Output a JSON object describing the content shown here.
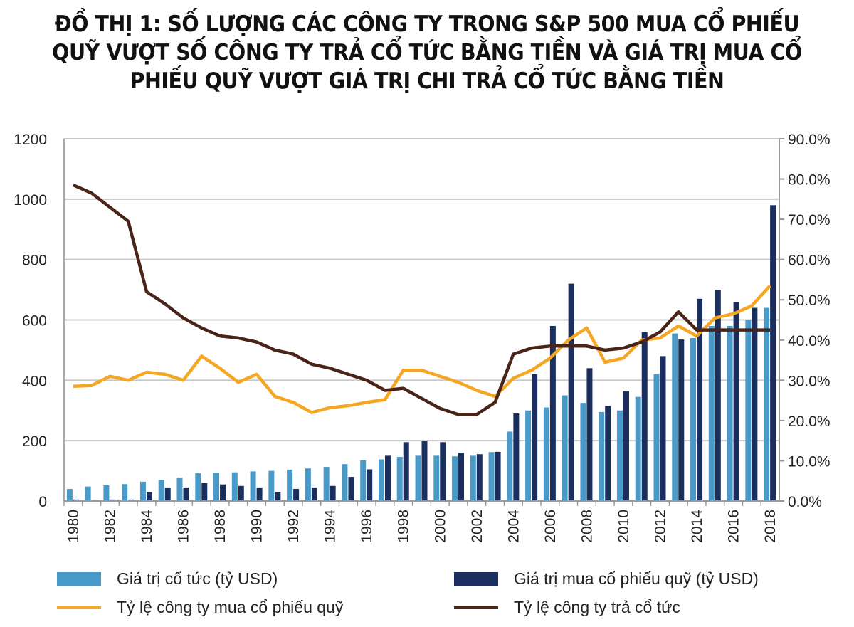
{
  "chart_data": {
    "type": "bar+line",
    "title": "ĐỒ THỊ 1: SỐ LƯỢNG CÁC CÔNG TY TRONG S&P 500 MUA CỔ PHIẾU QUỸ VƯỢT SỐ CÔNG TY TRẢ CỔ TỨC BẰNG TIỀN VÀ GIÁ TRỊ MUA CỔ PHIẾU QUỸ VƯỢT GIÁ TRỊ CHI TRẢ CỔ TỨC BẰNG TIỀN",
    "title_lines": [
      "ĐỒ THỊ 1: SỐ LƯỢNG CÁC CÔNG TY TRONG S&P 500 MUA CỔ PHIẾU",
      "QUỸ VƯỢT SỐ CÔNG TY TRẢ CỔ TỨC BẰNG TIỀN VÀ GIÁ TRỊ MUA CỔ",
      "PHIẾU QUỸ VƯỢT GIÁ TRỊ CHI TRẢ CỔ TỨC BẰNG TIỀN"
    ],
    "categories": [
      1980,
      1981,
      1982,
      1983,
      1984,
      1985,
      1986,
      1987,
      1988,
      1989,
      1990,
      1991,
      1992,
      1993,
      1994,
      1995,
      1996,
      1997,
      1998,
      1999,
      2000,
      2001,
      2002,
      2003,
      2004,
      2005,
      2006,
      2007,
      2008,
      2009,
      2010,
      2011,
      2012,
      2013,
      2014,
      2015,
      2016,
      2017,
      2018
    ],
    "x_tick_labels": [
      "1980",
      "1982",
      "1984",
      "1986",
      "1988",
      "1990",
      "1992",
      "1994",
      "1996",
      "1998",
      "2000",
      "2002",
      "2004",
      "2006",
      "2008",
      "2010",
      "2012",
      "2014",
      "2016",
      "2018"
    ],
    "ylim_left": [
      0,
      1200
    ],
    "y_ticks_left": [
      "0",
      "200",
      "400",
      "600",
      "800",
      "1000",
      "1200"
    ],
    "ylim_right": [
      0,
      90
    ],
    "y_ticks_right": [
      "0.0%",
      "10.0%",
      "20.0%",
      "30.0%",
      "40.0%",
      "50.0%",
      "60.0%",
      "70.0%",
      "80.0%",
      "90.0%"
    ],
    "grid": true,
    "legend_position": "bottom",
    "series": [
      {
        "name": "Giá trị cổ tức (tỷ USD)",
        "type": "bar",
        "axis": "left",
        "color": "#4a9ac9",
        "values": [
          40,
          48,
          52,
          56,
          64,
          70,
          78,
          92,
          94,
          95,
          98,
          100,
          104,
          108,
          113,
          122,
          135,
          138,
          146,
          150,
          150,
          148,
          150,
          162,
          230,
          300,
          310,
          350,
          325,
          295,
          300,
          345,
          420,
          555,
          540,
          580,
          580,
          600,
          640
        ]
      },
      {
        "name": "Giá trị mua cổ phiếu quỹ (tỷ USD)",
        "type": "bar",
        "axis": "left",
        "color": "#1b2f5e",
        "values": [
          5,
          3,
          5,
          5,
          30,
          45,
          45,
          60,
          55,
          50,
          45,
          30,
          40,
          45,
          50,
          80,
          105,
          150,
          195,
          200,
          195,
          160,
          155,
          163,
          290,
          420,
          580,
          720,
          440,
          315,
          365,
          560,
          480,
          535,
          670,
          700,
          660,
          640,
          980
        ]
      },
      {
        "name": "Tỷ lệ công ty mua cổ phiếu quỹ",
        "type": "line",
        "axis": "right",
        "color": "#f5a623",
        "values": [
          28.5,
          28.7,
          31,
          30,
          32,
          31.5,
          30,
          36,
          33,
          29.5,
          31.5,
          26,
          24.5,
          22,
          23.2,
          23.7,
          24.5,
          25.2,
          32.5,
          32.5,
          31,
          29.5,
          27.5,
          26,
          30.5,
          32.5,
          35.5,
          40,
          43,
          34.5,
          35.5,
          40,
          40.5,
          43.5,
          41,
          45.5,
          46.5,
          48.5,
          53.5
        ]
      },
      {
        "name": "Tỷ lệ công ty trả cổ tức",
        "type": "line",
        "axis": "right",
        "color": "#4a2418",
        "values": [
          78.5,
          76.5,
          73,
          69.5,
          52,
          49,
          45.5,
          43,
          41,
          40.5,
          39.5,
          37.5,
          36.5,
          34,
          33,
          31.5,
          30,
          27.5,
          28,
          25.5,
          23,
          21.5,
          21.5,
          24.5,
          36.5,
          38,
          38.5,
          38.5,
          38.5,
          37.5,
          38,
          39.5,
          42,
          47,
          42.5,
          42.5,
          42.5,
          42.5,
          42.5
        ]
      }
    ]
  }
}
